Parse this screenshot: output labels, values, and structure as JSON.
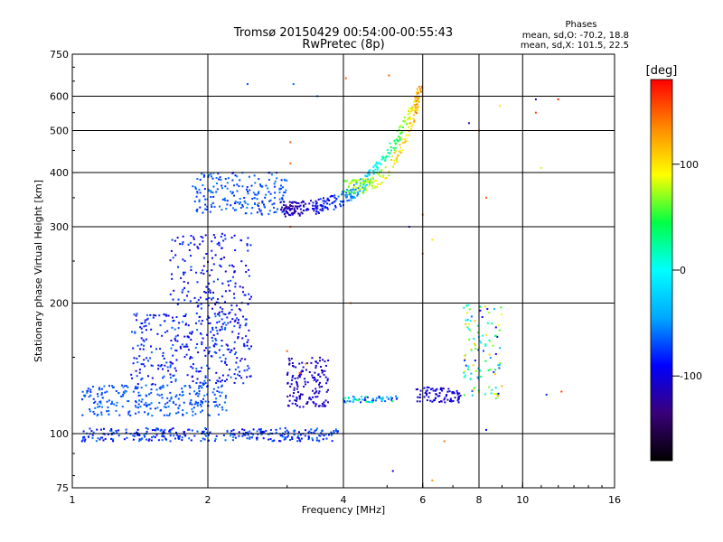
{
  "chart_data": {
    "type": "scatter",
    "title": "Tromsø 20150429 00:54:00-00:55:43",
    "subtitle": "RwPretec (8p)",
    "xlabel": "Frequency [MHz]",
    "ylabel": "Stationary phase Virtual Height [km]",
    "x_scale": "log",
    "y_scale": "log",
    "xlim": [
      1,
      16
    ],
    "ylim": [
      75,
      750
    ],
    "x_ticks": [
      1,
      2,
      4,
      6,
      8,
      10,
      16
    ],
    "x_tick_labels": [
      "1",
      "2",
      "4",
      "6",
      "8",
      "10",
      "16"
    ],
    "y_ticks": [
      75,
      100,
      200,
      300,
      400,
      500,
      600,
      750
    ],
    "y_tick_labels": [
      "75",
      "100",
      "200",
      "300",
      "400",
      "500",
      "600",
      "750"
    ],
    "grid": true,
    "legend": {
      "title": "Phases",
      "lines": [
        "mean, sd,O: -70.2, 18.8",
        "mean, sd,X: 101.5, 22.5"
      ],
      "placement": "top-right"
    },
    "colorbar": {
      "label": "[deg]",
      "range": [
        -180,
        180
      ],
      "ticks": [
        100,
        0,
        -100
      ],
      "tick_labels": [
        "100",
        "0",
        "-100"
      ],
      "colormap": [
        "#000000",
        "#3a007a",
        "#0000ff",
        "#00a8ff",
        "#00ffff",
        "#00ff44",
        "#ffff00",
        "#ff8800",
        "#ff0000"
      ]
    },
    "clusters": [
      {
        "f": [
          1.05,
          3.9
        ],
        "h": [
          96,
          103
        ],
        "phase": [
          -100,
          -55
        ],
        "n": 300
      },
      {
        "f": [
          1.05,
          2.2
        ],
        "h": [
          110,
          130
        ],
        "phase": [
          -80,
          -55
        ],
        "n": 260
      },
      {
        "f": [
          1.35,
          2.5
        ],
        "h": [
          130,
          190
        ],
        "phase": [
          -110,
          -60
        ],
        "n": 340
      },
      {
        "f": [
          1.65,
          2.5
        ],
        "h": [
          190,
          290
        ],
        "phase": [
          -110,
          -70
        ],
        "n": 170
      },
      {
        "f": [
          1.85,
          3.0
        ],
        "h": [
          320,
          400
        ],
        "phase": [
          -85,
          -55
        ],
        "n": 200
      },
      {
        "f": [
          3.0,
          3.7
        ],
        "h": [
          115,
          150
        ],
        "phase": [
          -120,
          -95
        ],
        "n": 140
      },
      {
        "f": [
          4.0,
          5.3
        ],
        "h": [
          118,
          122
        ],
        "phase": [
          -110,
          60
        ],
        "n": 60
      },
      {
        "f": [
          5.8,
          7.3
        ],
        "h": [
          118,
          128
        ],
        "phase": [
          -120,
          -90
        ],
        "n": 80
      },
      {
        "f": [
          7.4,
          9.0
        ],
        "h": [
          120,
          200
        ],
        "phase": [
          -100,
          120
        ],
        "n": 110
      }
    ],
    "curves": [
      {
        "f": [
          2.9,
          5.9
        ],
        "h": [
          330,
          620
        ],
        "phase": [
          -115,
          120
        ],
        "n": 320
      },
      {
        "f": [
          4.0,
          6.0
        ],
        "h": [
          370,
          640
        ],
        "phase": [
          70,
          130
        ],
        "n": 150
      }
    ],
    "outliers": [
      {
        "f": 2.45,
        "h": 640,
        "phase": -70
      },
      {
        "f": 3.1,
        "h": 640,
        "phase": -60
      },
      {
        "f": 3.05,
        "h": 470,
        "phase": 150
      },
      {
        "f": 3.05,
        "h": 420,
        "phase": 150
      },
      {
        "f": 3.05,
        "h": 300,
        "phase": 150
      },
      {
        "f": 2.6,
        "h": 340,
        "phase": 140
      },
      {
        "f": 3.5,
        "h": 600,
        "phase": -60
      },
      {
        "f": 4.05,
        "h": 660,
        "phase": 150
      },
      {
        "f": 5.05,
        "h": 670,
        "phase": 150
      },
      {
        "f": 5.6,
        "h": 300,
        "phase": -80
      },
      {
        "f": 6.0,
        "h": 320,
        "phase": 150
      },
      {
        "f": 6.3,
        "h": 280,
        "phase": 100
      },
      {
        "f": 7.6,
        "h": 520,
        "phase": -110
      },
      {
        "f": 8.0,
        "h": 500,
        "phase": 150
      },
      {
        "f": 8.3,
        "h": 350,
        "phase": 150
      },
      {
        "f": 8.9,
        "h": 570,
        "phase": 100
      },
      {
        "f": 10.7,
        "h": 590,
        "phase": -110
      },
      {
        "f": 10.7,
        "h": 550,
        "phase": 160
      },
      {
        "f": 11.0,
        "h": 410,
        "phase": 80
      },
      {
        "f": 12.0,
        "h": 590,
        "phase": 170
      },
      {
        "f": 12.2,
        "h": 125,
        "phase": 160
      },
      {
        "f": 11.3,
        "h": 123,
        "phase": -80
      },
      {
        "f": 8.3,
        "h": 102,
        "phase": -90
      },
      {
        "f": 6.7,
        "h": 96,
        "phase": 140
      },
      {
        "f": 6.3,
        "h": 78,
        "phase": 130
      },
      {
        "f": 5.15,
        "h": 82,
        "phase": -100
      },
      {
        "f": 6.0,
        "h": 260,
        "phase": 150
      },
      {
        "f": 4.15,
        "h": 200,
        "phase": 140
      },
      {
        "f": 3.0,
        "h": 155,
        "phase": 150
      },
      {
        "f": 3.2,
        "h": 138,
        "phase": 160
      },
      {
        "f": 3.3,
        "h": 145,
        "phase": 140
      }
    ]
  }
}
